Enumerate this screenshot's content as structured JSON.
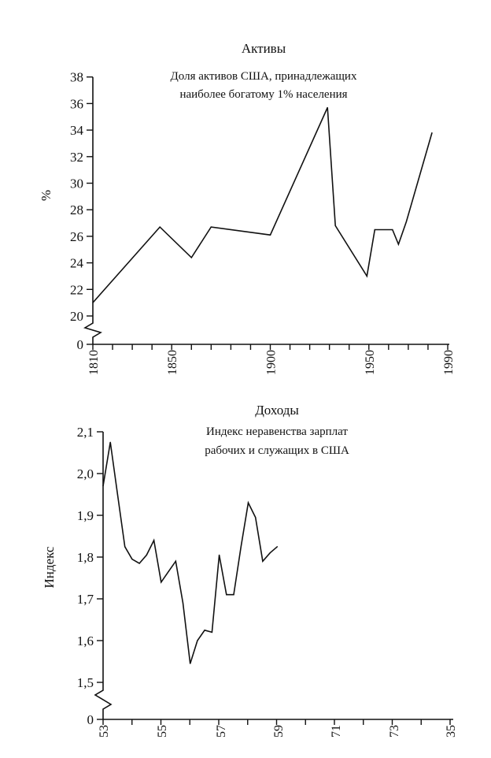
{
  "chart_data": [
    {
      "type": "line",
      "title": "Активы",
      "subtitle": [
        "Доля активов США, принадлежащих",
        "наиболее богатому 1% населения"
      ],
      "ylabel": "%",
      "xlabel": "",
      "x_ticks": [
        "1810",
        "1850",
        "1900",
        "1950",
        "1990"
      ],
      "y_ticks": [
        "0",
        "20",
        "22",
        "24",
        "26",
        "28",
        "30",
        "32",
        "34",
        "36",
        "38"
      ],
      "xlim": [
        1810,
        1990
      ],
      "ylim": [
        20,
        38
      ],
      "axis_break": true,
      "grid": false,
      "x": [
        1810,
        1844,
        1860,
        1870,
        1900,
        1929,
        1933,
        1949,
        1953,
        1962,
        1965,
        1969,
        1982
      ],
      "values": [
        21.0,
        26.7,
        24.4,
        26.7,
        26.1,
        35.7,
        26.8,
        23.0,
        26.5,
        26.5,
        25.4,
        27.1,
        33.8
      ]
    },
    {
      "type": "line",
      "title": "Доходы",
      "subtitle": [
        "Индекс неравенства зарплат",
        "рабочих и служащих в США"
      ],
      "ylabel": "Индекс",
      "xlabel": "",
      "x_ticks": [
        "53",
        "55",
        "57",
        "59",
        "71",
        "73",
        "35"
      ],
      "y_ticks": [
        "0",
        "1,5",
        "1,6",
        "1,7",
        "1,8",
        "1,9",
        "2,0",
        "2,1"
      ],
      "ylim": [
        1.5,
        2.1
      ],
      "axis_break": true,
      "grid": false,
      "x": [
        0,
        0.5,
        1,
        1.5,
        2,
        2.5,
        3,
        3.5,
        4,
        4.5,
        5,
        5.5,
        6,
        6.5,
        7,
        7.5,
        8,
        8.5,
        9,
        9.5,
        10,
        10.5,
        11,
        11.5,
        12
      ],
      "values": [
        1.97,
        2.075,
        1.95,
        1.825,
        1.795,
        1.785,
        1.805,
        1.84,
        1.74,
        1.765,
        1.79,
        1.69,
        1.545,
        1.6,
        1.625,
        1.62,
        1.805,
        1.71,
        1.71,
        1.825,
        1.93,
        1.895,
        1.79,
        1.81,
        1.825
      ]
    }
  ]
}
